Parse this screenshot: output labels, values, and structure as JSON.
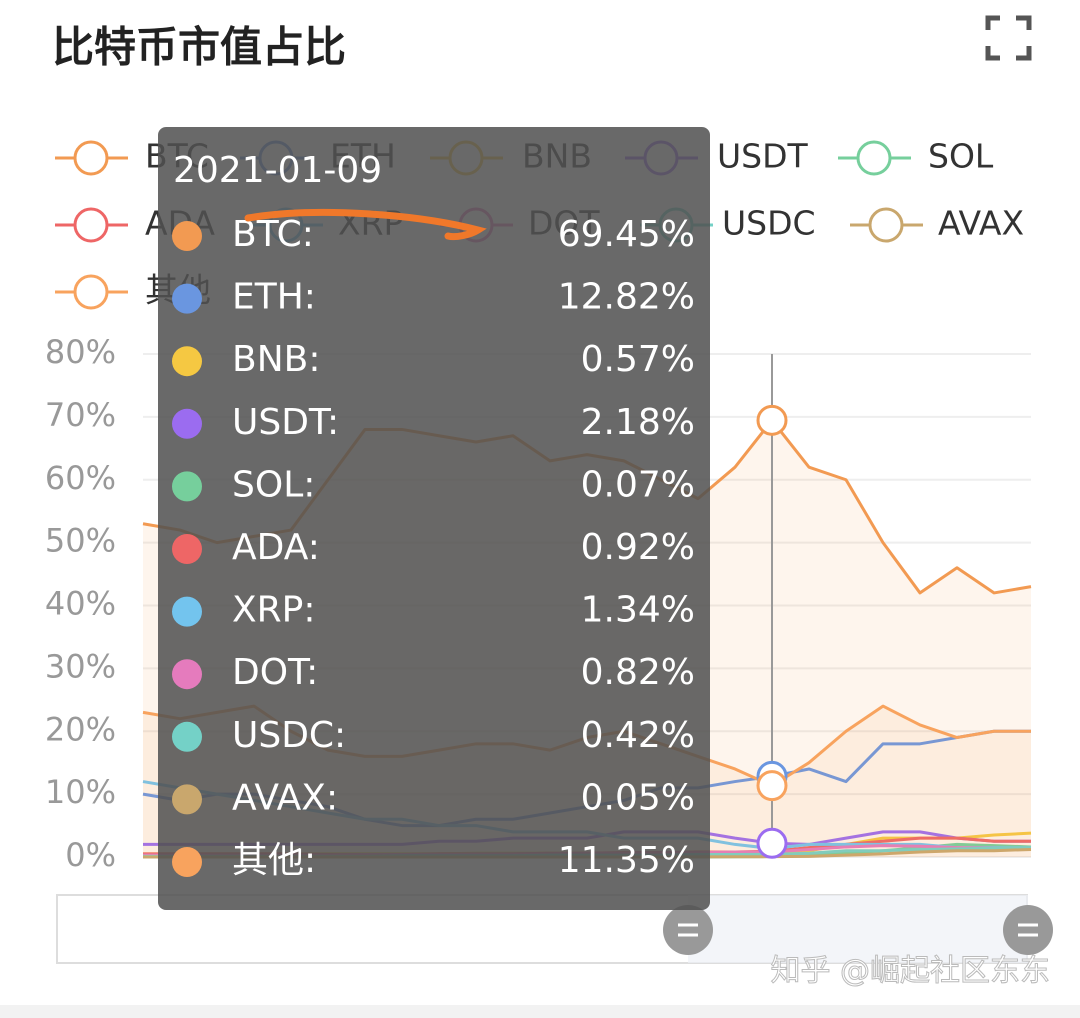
{
  "header": {
    "title": "比特币市值占比"
  },
  "chart_data": {
    "type": "line",
    "categories": [
      null,
      null,
      null,
      null,
      null,
      null,
      null,
      null,
      null,
      null,
      null,
      null,
      null,
      null,
      null,
      null,
      null,
      null,
      null,
      null,
      null,
      null,
      null,
      null,
      null
    ],
    "ylim": [
      0,
      80
    ],
    "yticks": [
      {
        "value": 0,
        "label": "0%"
      },
      {
        "value": 10,
        "label": "10%"
      },
      {
        "value": 20,
        "label": "20%"
      },
      {
        "value": 30,
        "label": "30%"
      },
      {
        "value": 40,
        "label": "40%"
      },
      {
        "value": 50,
        "label": "50%"
      },
      {
        "value": 60,
        "label": "60%"
      },
      {
        "value": 70,
        "label": "70%"
      },
      {
        "value": 80,
        "label": "80%"
      }
    ],
    "grid": true,
    "series": [
      {
        "name": "BTC",
        "color": "#f29a52",
        "values": [
          53,
          52,
          50,
          51,
          52,
          60,
          68,
          68,
          67,
          66,
          67,
          63,
          64,
          63,
          60,
          57,
          62,
          69.45,
          62,
          60,
          50,
          42,
          46,
          42,
          43
        ]
      },
      {
        "name": "ETH",
        "color": "#6a96e0",
        "values": [
          10,
          9,
          10,
          10,
          9,
          8,
          6,
          5,
          5,
          6,
          6,
          7,
          8,
          9,
          11,
          11,
          12,
          12.82,
          14,
          12,
          18,
          18,
          19,
          20,
          20
        ]
      },
      {
        "name": "BNB",
        "color": "#f5c842",
        "values": [
          0.5,
          0.5,
          0.5,
          0.5,
          0.5,
          0.5,
          0.5,
          0.5,
          0.5,
          0.6,
          0.6,
          0.6,
          0.6,
          0.6,
          0.5,
          0.5,
          0.5,
          0.57,
          1,
          2,
          3,
          3,
          3,
          3.5,
          3.8
        ]
      },
      {
        "name": "USDT",
        "color": "#9b6cf0",
        "values": [
          2,
          2,
          2,
          2,
          2,
          2,
          2,
          2,
          2.5,
          2.5,
          3,
          3,
          3,
          4,
          4,
          4,
          3,
          2.18,
          2,
          3,
          4,
          4,
          3,
          2.5,
          2.5
        ]
      },
      {
        "name": "SOL",
        "color": "#76cf9c",
        "values": [
          0,
          0,
          0,
          0,
          0,
          0,
          0,
          0,
          0,
          0,
          0,
          0,
          0,
          0,
          0,
          0,
          0.03,
          0.07,
          0.3,
          0.6,
          1,
          1.5,
          2,
          1.8,
          1.6
        ]
      },
      {
        "name": "ADA",
        "color": "#ee6666",
        "values": [
          0.5,
          0.5,
          0.5,
          0.5,
          0.5,
          0.4,
          0.4,
          0.4,
          0.5,
          0.5,
          0.5,
          0.6,
          0.6,
          0.7,
          0.7,
          0.8,
          0.8,
          0.92,
          1.5,
          2,
          2.5,
          3,
          3,
          2.5,
          2.5
        ]
      },
      {
        "name": "XRP",
        "color": "#73c4ee",
        "values": [
          12,
          11,
          10,
          9,
          8,
          7,
          6,
          6,
          5,
          5,
          4,
          4,
          4,
          3,
          3,
          3,
          2,
          1.34,
          2,
          2,
          2,
          2,
          1.5,
          1.5,
          1.5
        ]
      },
      {
        "name": "DOT",
        "color": "#e57bbd",
        "values": [
          0.3,
          0.3,
          0.3,
          0.3,
          0.3,
          0.3,
          0.4,
          0.4,
          0.4,
          0.5,
          0.5,
          0.5,
          0.6,
          0.6,
          0.7,
          0.7,
          0.8,
          0.82,
          1.2,
          1.6,
          1.8,
          1.7,
          1.5,
          1.4,
          1.3
        ]
      },
      {
        "name": "USDC",
        "color": "#74d1c7",
        "values": [
          0.1,
          0.1,
          0.1,
          0.1,
          0.1,
          0.1,
          0.1,
          0.2,
          0.2,
          0.2,
          0.2,
          0.3,
          0.3,
          0.3,
          0.3,
          0.4,
          0.4,
          0.42,
          0.6,
          1,
          1,
          1.2,
          1.3,
          1.4,
          1.5
        ]
      },
      {
        "name": "AVAX",
        "color": "#c9a76d",
        "values": [
          0,
          0,
          0,
          0,
          0,
          0,
          0,
          0,
          0,
          0,
          0,
          0,
          0,
          0,
          0,
          0.02,
          0.04,
          0.05,
          0.1,
          0.3,
          0.5,
          0.8,
          1,
          1,
          1.2
        ]
      },
      {
        "name": "其他",
        "color": "#f8a35e",
        "values": [
          23,
          22,
          23,
          24,
          20,
          17,
          16,
          16,
          17,
          18,
          18,
          17,
          19,
          20,
          18,
          16,
          14,
          11.35,
          15,
          20,
          24,
          21,
          19,
          20,
          20
        ]
      }
    ]
  },
  "tooltip": {
    "title": "2021-01-09",
    "rows": [
      {
        "label": "BTC:",
        "value": "69.45%"
      },
      {
        "label": "ETH:",
        "value": "12.82%"
      },
      {
        "label": "BNB:",
        "value": "0.57%"
      },
      {
        "label": "USDT:",
        "value": "2.18%"
      },
      {
        "label": "SOL:",
        "value": "0.07%"
      },
      {
        "label": "ADA:",
        "value": "0.92%"
      },
      {
        "label": "XRP:",
        "value": "1.34%"
      },
      {
        "label": "DOT:",
        "value": "0.82%"
      },
      {
        "label": "USDC:",
        "value": "0.42%"
      },
      {
        "label": "AVAX:",
        "value": "0.05%"
      },
      {
        "label": "其他:",
        "value": "11.35%"
      }
    ]
  },
  "watermark": "知乎 @崛起社区东东"
}
